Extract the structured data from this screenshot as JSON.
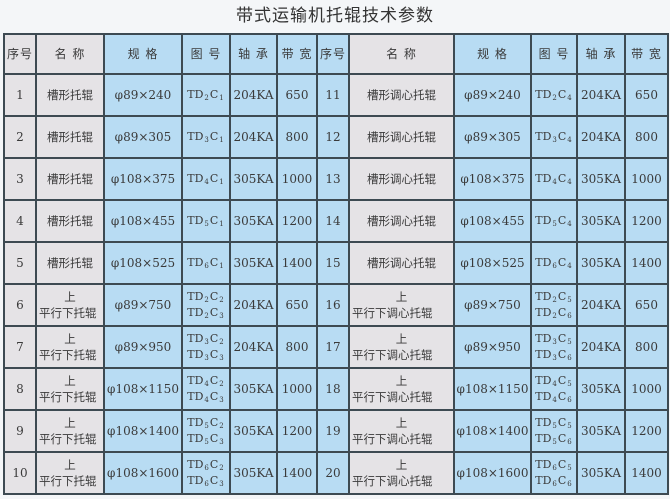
{
  "title": "带式运输机托辊技术参数",
  "headers": [
    "序号",
    "名 称",
    "规 格",
    "图 号",
    "轴 承",
    "带 宽",
    "序号",
    "名 称",
    "规 格",
    "图 号",
    "轴 承",
    "带 宽"
  ],
  "rows": [
    {
      "left": {
        "no": "1",
        "name": "槽形托辊",
        "spec": "φ89×240",
        "fig": [
          [
            "TD",
            "2",
            "C",
            "1"
          ]
        ],
        "bearing": "204KA",
        "width": "650"
      },
      "right": {
        "no": "11",
        "name": "槽形调心托辊",
        "spec": "φ89×240",
        "fig": [
          [
            "TD",
            "2",
            "C",
            "4"
          ]
        ],
        "bearing": "204KA",
        "width": "650"
      }
    },
    {
      "left": {
        "no": "2",
        "name": "槽形托辊",
        "spec": "φ89×305",
        "fig": [
          [
            "TD",
            "3",
            "C",
            "1"
          ]
        ],
        "bearing": "204KA",
        "width": "800"
      },
      "right": {
        "no": "12",
        "name": "槽形调心托辊",
        "spec": "φ89×305",
        "fig": [
          [
            "TD",
            "3",
            "C",
            "4"
          ]
        ],
        "bearing": "204KA",
        "width": "800"
      }
    },
    {
      "left": {
        "no": "3",
        "name": "槽形托辊",
        "spec": "φ108×375",
        "fig": [
          [
            "TD",
            "4",
            "C",
            "1"
          ]
        ],
        "bearing": "305KA",
        "width": "1000"
      },
      "right": {
        "no": "13",
        "name": "槽形调心托辊",
        "spec": "φ108×375",
        "fig": [
          [
            "TD",
            "4",
            "C",
            "4"
          ]
        ],
        "bearing": "305KA",
        "width": "1000"
      }
    },
    {
      "left": {
        "no": "4",
        "name": "槽形托辊",
        "spec": "φ108×455",
        "fig": [
          [
            "TD",
            "5",
            "C",
            "1"
          ]
        ],
        "bearing": "305KA",
        "width": "1200"
      },
      "right": {
        "no": "14",
        "name": "槽形调心托辊",
        "spec": "φ108×455",
        "fig": [
          [
            "TD",
            "5",
            "C",
            "4"
          ]
        ],
        "bearing": "305KA",
        "width": "1200"
      }
    },
    {
      "left": {
        "no": "5",
        "name": "槽形托辊",
        "spec": "φ108×525",
        "fig": [
          [
            "TD",
            "6",
            "C",
            "1"
          ]
        ],
        "bearing": "305KA",
        "width": "1400"
      },
      "right": {
        "no": "15",
        "name": "槽形调心托辊",
        "spec": "φ108×525",
        "fig": [
          [
            "TD",
            "6",
            "C",
            "4"
          ]
        ],
        "bearing": "305KA",
        "width": "1400"
      }
    },
    {
      "left": {
        "no": "6",
        "name_upper": "上",
        "name": "平行下托辊",
        "spec": "φ89×750",
        "fig": [
          [
            "TD",
            "2",
            "C",
            "2"
          ],
          [
            "TD",
            "2",
            "C",
            "3"
          ]
        ],
        "bearing": "204KA",
        "width": "650"
      },
      "right": {
        "no": "16",
        "name_upper": "上",
        "name": "平行下调心托辊",
        "spec": "φ89×750",
        "fig": [
          [
            "TD",
            "2",
            "C",
            "5"
          ],
          [
            "TD",
            "2",
            "C",
            "6"
          ]
        ],
        "bearing": "204KA",
        "width": "650"
      }
    },
    {
      "left": {
        "no": "7",
        "name_upper": "上",
        "name": "平行下托辊",
        "spec": "φ89×950",
        "fig": [
          [
            "TD",
            "3",
            "C",
            "2"
          ],
          [
            "TD",
            "3",
            "C",
            "3"
          ]
        ],
        "bearing": "204KA",
        "width": "800"
      },
      "right": {
        "no": "17",
        "name_upper": "上",
        "name": "平行下调心托辊",
        "spec": "φ89×950",
        "fig": [
          [
            "TD",
            "3",
            "C",
            "5"
          ],
          [
            "TD",
            "3",
            "C",
            "6"
          ]
        ],
        "bearing": "204KA",
        "width": "800"
      }
    },
    {
      "left": {
        "no": "8",
        "name_upper": "上",
        "name": "平行下托辊",
        "spec": "φ108×1150",
        "fig": [
          [
            "TD",
            "4",
            "C",
            "2"
          ],
          [
            "TD",
            "4",
            "C",
            "3"
          ]
        ],
        "bearing": "305KA",
        "width": "1000"
      },
      "right": {
        "no": "18",
        "name_upper": "上",
        "name": "平行下调心托辊",
        "spec": "φ108×1150",
        "fig": [
          [
            "TD",
            "4",
            "C",
            "5"
          ],
          [
            "TD",
            "4",
            "C",
            "6"
          ]
        ],
        "bearing": "305KA",
        "width": "1000"
      }
    },
    {
      "left": {
        "no": "9",
        "name_upper": "上",
        "name": "平行下托辊",
        "spec": "φ108×1400",
        "fig": [
          [
            "TD",
            "5",
            "C",
            "2"
          ],
          [
            "TD",
            "5",
            "C",
            "3"
          ]
        ],
        "bearing": "305KA",
        "width": "1200"
      },
      "right": {
        "no": "19",
        "name_upper": "上",
        "name": "平行下调心托辊",
        "spec": "φ108×1400",
        "fig": [
          [
            "TD",
            "5",
            "C",
            "5"
          ],
          [
            "TD",
            "5",
            "C",
            "6"
          ]
        ],
        "bearing": "305KA",
        "width": "1200"
      }
    },
    {
      "left": {
        "no": "10",
        "name_upper": "上",
        "name": "平行下托辊",
        "spec": "φ108×1600",
        "fig": [
          [
            "TD",
            "6",
            "C",
            "2"
          ],
          [
            "TD",
            "6",
            "C",
            "3"
          ]
        ],
        "bearing": "305KA",
        "width": "1400"
      },
      "right": {
        "no": "20",
        "name_upper": "上",
        "name": "平行下调心托辊",
        "spec": "φ108×1600",
        "fig": [
          [
            "TD",
            "6",
            "C",
            "5"
          ],
          [
            "TD",
            "6",
            "C",
            "6"
          ]
        ],
        "bearing": "305KA",
        "width": "1400"
      }
    }
  ],
  "colors": {
    "name_cell": "#e5e3e6",
    "data_cell": "#b8dcf3",
    "border": "#3d4a52"
  }
}
